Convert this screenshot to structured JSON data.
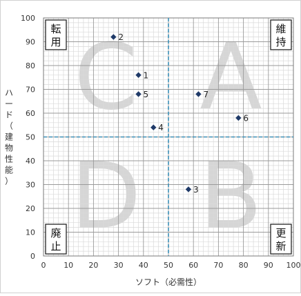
{
  "chart_data": {
    "type": "scatter",
    "xlabel": "ソフト（必需性）",
    "ylabel_chars": [
      "ハ",
      "ー",
      "ド",
      "（",
      "建",
      "物",
      "性",
      "能",
      "）"
    ],
    "xlim": [
      0,
      100
    ],
    "ylim": [
      0,
      100
    ],
    "major_step": 10,
    "minor_step": 2,
    "x_ticks": [
      0,
      10,
      20,
      30,
      40,
      50,
      60,
      70,
      80,
      90,
      100
    ],
    "y_ticks": [
      0,
      10,
      20,
      30,
      40,
      50,
      60,
      70,
      80,
      90,
      100
    ],
    "grid": true,
    "divider_x": 50,
    "divider_y": 50,
    "quadrant_letters": [
      {
        "letter": "A",
        "quadrant": "top-right"
      },
      {
        "letter": "B",
        "quadrant": "bottom-right"
      },
      {
        "letter": "C",
        "quadrant": "top-left"
      },
      {
        "letter": "D",
        "quadrant": "bottom-left"
      }
    ],
    "corner_labels": [
      {
        "corner": "top-left",
        "lines": [
          "転",
          "用"
        ]
      },
      {
        "corner": "top-right",
        "lines": [
          "維",
          "持"
        ]
      },
      {
        "corner": "bottom-left",
        "lines": [
          "廃",
          "止"
        ]
      },
      {
        "corner": "bottom-right",
        "lines": [
          "更",
          "新"
        ]
      }
    ],
    "points": [
      {
        "label": "1",
        "x": 38,
        "y": 76
      },
      {
        "label": "2",
        "x": 28,
        "y": 92
      },
      {
        "label": "3",
        "x": 58,
        "y": 28
      },
      {
        "label": "4",
        "x": 44,
        "y": 54
      },
      {
        "label": "5",
        "x": 38,
        "y": 68
      },
      {
        "label": "6",
        "x": 78,
        "y": 58
      },
      {
        "label": "7",
        "x": 62,
        "y": 68
      }
    ],
    "colors": {
      "marker": "#1f3a68",
      "divider": "#3a8fb7",
      "minor_grid": "#d9d9d9",
      "major_grid": "#9a9a9a",
      "watermark": "#d6d6d6",
      "text": "#333333"
    }
  }
}
